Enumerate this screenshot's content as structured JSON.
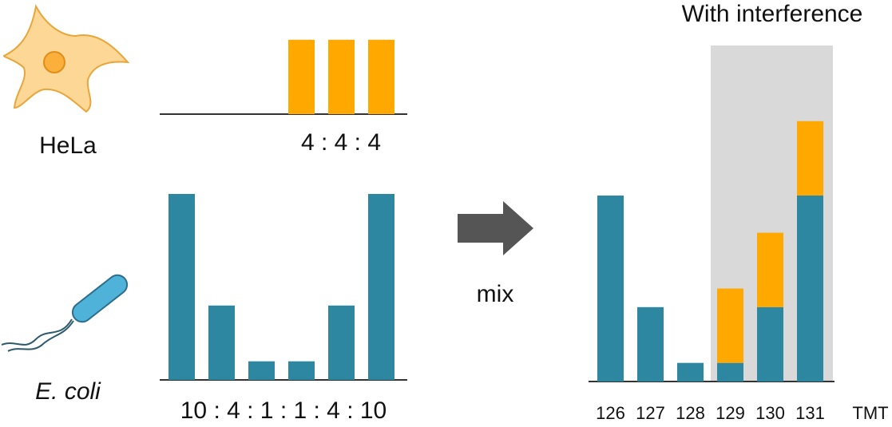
{
  "title": "With interference",
  "hela": {
    "label": "HeLa",
    "ratio": "4 : 4 : 4",
    "values": [
      4,
      4,
      4
    ]
  },
  "ecoli": {
    "label": "E. coli",
    "ratio": "10 : 4 : 1 : 1 : 4 : 10",
    "values": [
      10,
      4,
      1,
      1,
      4,
      10
    ]
  },
  "arrow_label": "mix",
  "mixed": {
    "channels": [
      "126",
      "127",
      "128",
      "129",
      "130",
      "131"
    ],
    "unit": "TMT",
    "ecoli": [
      10,
      4,
      1,
      1,
      4,
      10
    ],
    "hela": [
      null,
      null,
      null,
      4,
      4,
      4
    ]
  }
}
